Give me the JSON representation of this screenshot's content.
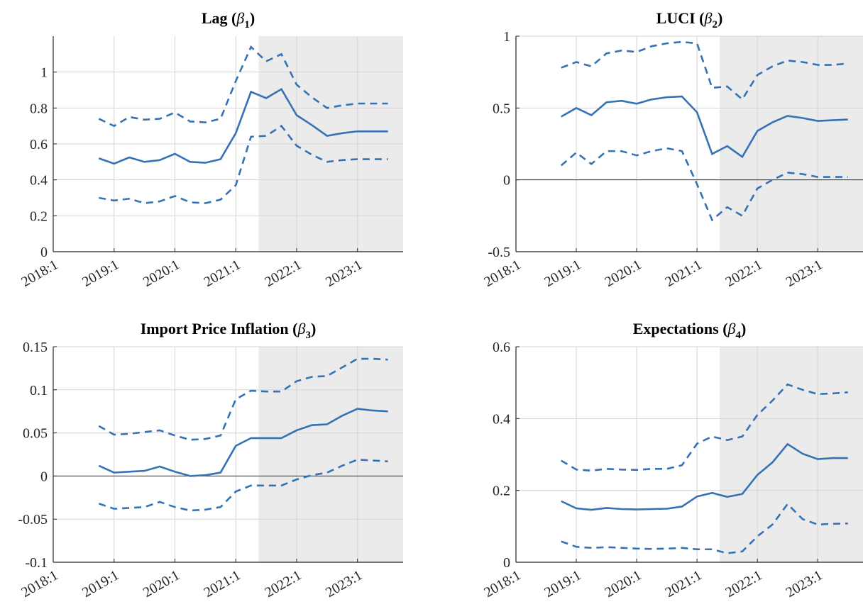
{
  "chart_data": [
    {
      "type": "line",
      "title": [
        "Lag (",
        "β",
        "1",
        ")"
      ],
      "x": [
        2018.75,
        2019,
        2019.25,
        2019.5,
        2019.75,
        2020,
        2020.25,
        2020.5,
        2020.75,
        2021,
        2021.25,
        2021.5,
        2021.75,
        2022,
        2022.25,
        2022.5,
        2022.75,
        2023,
        2023.25,
        2023.5
      ],
      "series": [
        {
          "color": "#3572b5",
          "style": "solid",
          "values": [
            0.52,
            0.49,
            0.525,
            0.5,
            0.51,
            0.545,
            0.5,
            0.495,
            0.515,
            0.66,
            0.89,
            0.855,
            0.905,
            0.76,
            0.705,
            0.645,
            0.66,
            0.67,
            0.67,
            0.67
          ]
        },
        {
          "color": "#3572b5",
          "style": "dashed",
          "values": [
            0.74,
            0.7,
            0.75,
            0.735,
            0.74,
            0.775,
            0.725,
            0.72,
            0.74,
            0.95,
            1.14,
            1.06,
            1.1,
            0.93,
            0.86,
            0.8,
            0.815,
            0.825,
            0.825,
            0.825
          ]
        },
        {
          "color": "#3572b5",
          "style": "dashed",
          "values": [
            0.3,
            0.285,
            0.295,
            0.27,
            0.28,
            0.31,
            0.275,
            0.27,
            0.29,
            0.37,
            0.64,
            0.645,
            0.7,
            0.59,
            0.54,
            0.5,
            0.51,
            0.515,
            0.515,
            0.515
          ]
        }
      ],
      "xlim": [
        2018,
        2023.75
      ],
      "xticks": [
        {
          "value": 2018,
          "label": "2018:1"
        },
        {
          "value": 2019,
          "label": "2019:1"
        },
        {
          "value": 2020,
          "label": "2020:1"
        },
        {
          "value": 2021,
          "label": "2021:1"
        },
        {
          "value": 2022,
          "label": "2022:1"
        },
        {
          "value": 2023,
          "label": "2023:1"
        }
      ],
      "ylim": [
        0,
        1.2
      ],
      "yticks": [
        0,
        0.2,
        0.4,
        0.6,
        0.8,
        1
      ],
      "grid": true,
      "zero_line": false,
      "shade": [
        2021.375,
        2023.75
      ],
      "shade_color": "#ebebeb"
    },
    {
      "type": "line",
      "title": [
        "LUCI (",
        "β",
        "2",
        ")"
      ],
      "x": [
        2018.75,
        2019,
        2019.25,
        2019.5,
        2019.75,
        2020,
        2020.25,
        2020.5,
        2020.75,
        2021,
        2021.25,
        2021.5,
        2021.75,
        2022,
        2022.25,
        2022.5,
        2022.75,
        2023,
        2023.25,
        2023.5
      ],
      "series": [
        {
          "color": "#3572b5",
          "style": "solid",
          "values": [
            0.44,
            0.5,
            0.45,
            0.54,
            0.55,
            0.53,
            0.56,
            0.575,
            0.58,
            0.47,
            0.18,
            0.235,
            0.16,
            0.34,
            0.4,
            0.445,
            0.43,
            0.41,
            0.415,
            0.42
          ]
        },
        {
          "color": "#3572b5",
          "style": "dashed",
          "values": [
            0.78,
            0.82,
            0.79,
            0.88,
            0.9,
            0.89,
            0.93,
            0.95,
            0.96,
            0.95,
            0.64,
            0.65,
            0.56,
            0.73,
            0.79,
            0.83,
            0.82,
            0.8,
            0.8,
            0.81
          ]
        },
        {
          "color": "#3572b5",
          "style": "dashed",
          "values": [
            0.1,
            0.19,
            0.11,
            0.2,
            0.2,
            0.17,
            0.2,
            0.22,
            0.2,
            -0.03,
            -0.28,
            -0.19,
            -0.25,
            -0.06,
            0,
            0.05,
            0.04,
            0.02,
            0.02,
            0.02
          ]
        }
      ],
      "xlim": [
        2018,
        2023.75
      ],
      "xticks": [
        {
          "value": 2018,
          "label": "2018:1"
        },
        {
          "value": 2019,
          "label": "2019:1"
        },
        {
          "value": 2020,
          "label": "2020:1"
        },
        {
          "value": 2021,
          "label": "2021:1"
        },
        {
          "value": 2022,
          "label": "2022:1"
        },
        {
          "value": 2023,
          "label": "2023:1"
        }
      ],
      "ylim": [
        -0.5,
        1
      ],
      "yticks": [
        -0.5,
        0,
        0.5,
        1
      ],
      "grid": true,
      "zero_line": true,
      "shade": [
        2021.375,
        2023.75
      ],
      "shade_color": "#ebebeb"
    },
    {
      "type": "line",
      "title": [
        "Import Price Inflation (",
        "β",
        "3",
        ")"
      ],
      "x": [
        2018.75,
        2019,
        2019.25,
        2019.5,
        2019.75,
        2020,
        2020.25,
        2020.5,
        2020.75,
        2021,
        2021.25,
        2021.5,
        2021.75,
        2022,
        2022.25,
        2022.5,
        2022.75,
        2023,
        2023.25,
        2023.5
      ],
      "series": [
        {
          "color": "#3572b5",
          "style": "solid",
          "values": [
            0.012,
            0.004,
            0.005,
            0.006,
            0.011,
            0.005,
            0,
            0.001,
            0.004,
            0.035,
            0.044,
            0.044,
            0.044,
            0.053,
            0.059,
            0.06,
            0.07,
            0.078,
            0.076,
            0.075
          ]
        },
        {
          "color": "#3572b5",
          "style": "dashed",
          "values": [
            0.058,
            0.048,
            0.049,
            0.051,
            0.053,
            0.047,
            0.042,
            0.043,
            0.047,
            0.089,
            0.099,
            0.098,
            0.098,
            0.11,
            0.115,
            0.116,
            0.126,
            0.136,
            0.136,
            0.135
          ]
        },
        {
          "color": "#3572b5",
          "style": "dashed",
          "values": [
            -0.032,
            -0.038,
            -0.037,
            -0.036,
            -0.03,
            -0.036,
            -0.04,
            -0.039,
            -0.036,
            -0.018,
            -0.011,
            -0.011,
            -0.011,
            -0.004,
            0.001,
            0.004,
            0.012,
            0.019,
            0.018,
            0.017
          ]
        }
      ],
      "xlim": [
        2018,
        2023.75
      ],
      "xticks": [
        {
          "value": 2018,
          "label": "2018:1"
        },
        {
          "value": 2019,
          "label": "2019:1"
        },
        {
          "value": 2020,
          "label": "2020:1"
        },
        {
          "value": 2021,
          "label": "2021:1"
        },
        {
          "value": 2022,
          "label": "2022:1"
        },
        {
          "value": 2023,
          "label": "2023:1"
        }
      ],
      "ylim": [
        -0.1,
        0.15
      ],
      "yticks": [
        -0.1,
        -0.05,
        0,
        0.05,
        0.1,
        0.15
      ],
      "grid": true,
      "zero_line": true,
      "shade": [
        2021.375,
        2023.75
      ],
      "shade_color": "#ebebeb"
    },
    {
      "type": "line",
      "title": [
        "Expectations (",
        "β",
        "4",
        ")"
      ],
      "x": [
        2018.75,
        2019,
        2019.25,
        2019.5,
        2019.75,
        2020,
        2020.25,
        2020.5,
        2020.75,
        2021,
        2021.25,
        2021.5,
        2021.75,
        2022,
        2022.25,
        2022.5,
        2022.75,
        2023,
        2023.25,
        2023.5
      ],
      "series": [
        {
          "color": "#3572b5",
          "style": "solid",
          "values": [
            0.17,
            0.15,
            0.146,
            0.151,
            0.148,
            0.147,
            0.148,
            0.149,
            0.155,
            0.183,
            0.193,
            0.182,
            0.19,
            0.243,
            0.278,
            0.329,
            0.302,
            0.287,
            0.29,
            0.29
          ]
        },
        {
          "color": "#3572b5",
          "style": "dashed",
          "values": [
            0.283,
            0.258,
            0.255,
            0.26,
            0.258,
            0.257,
            0.26,
            0.26,
            0.27,
            0.33,
            0.35,
            0.34,
            0.35,
            0.41,
            0.45,
            0.495,
            0.48,
            0.468,
            0.47,
            0.473
          ]
        },
        {
          "color": "#3572b5",
          "style": "dashed",
          "values": [
            0.058,
            0.043,
            0.04,
            0.042,
            0.04,
            0.038,
            0.037,
            0.038,
            0.04,
            0.036,
            0.036,
            0.025,
            0.03,
            0.072,
            0.105,
            0.162,
            0.12,
            0.105,
            0.107,
            0.108
          ]
        }
      ],
      "xlim": [
        2018,
        2023.75
      ],
      "xticks": [
        {
          "value": 2018,
          "label": "2018:1"
        },
        {
          "value": 2019,
          "label": "2019:1"
        },
        {
          "value": 2020,
          "label": "2020:1"
        },
        {
          "value": 2021,
          "label": "2021:1"
        },
        {
          "value": 2022,
          "label": "2022:1"
        },
        {
          "value": 2023,
          "label": "2023:1"
        }
      ],
      "ylim": [
        0,
        0.6
      ],
      "yticks": [
        0,
        0.2,
        0.4,
        0.6
      ],
      "grid": true,
      "zero_line": false,
      "shade": [
        2021.375,
        2023.75
      ],
      "shade_color": "#ebebeb"
    }
  ]
}
